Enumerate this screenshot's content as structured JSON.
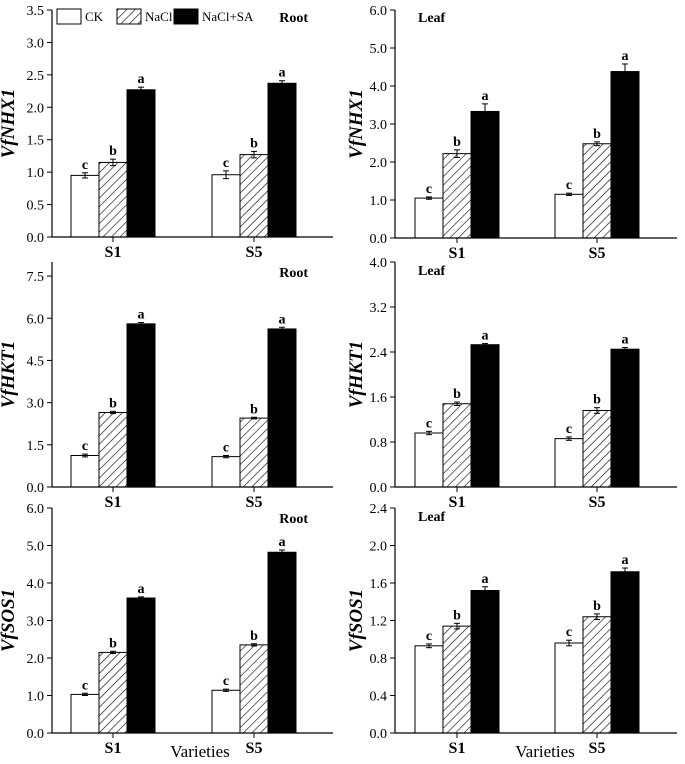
{
  "legend": [
    {
      "name": "CK",
      "fill": "white"
    },
    {
      "name": "NaCl",
      "fill": "hatch"
    },
    {
      "name": "NaCl+SA",
      "fill": "black"
    }
  ],
  "xlabel": "Varieties",
  "chart_data": [
    {
      "type": "bar",
      "panel": "top-left",
      "tissue": "Root",
      "ylabel": "VfNHX1",
      "ylim": [
        0,
        3.5
      ],
      "yticks": [
        "0.0",
        "0.5",
        "1.0",
        "1.5",
        "2.0",
        "2.5",
        "3.0",
        "3.5"
      ],
      "categories": [
        "S1",
        "S5"
      ],
      "series": [
        {
          "name": "CK",
          "values": [
            0.95,
            0.96
          ],
          "errors": [
            0.04,
            0.06
          ],
          "labels": [
            "c",
            "c"
          ]
        },
        {
          "name": "NaCl",
          "values": [
            1.15,
            1.27
          ],
          "errors": [
            0.05,
            0.05
          ],
          "labels": [
            "b",
            "b"
          ]
        },
        {
          "name": "NaCl+SA",
          "values": [
            2.27,
            2.37
          ],
          "errors": [
            0.04,
            0.04
          ],
          "labels": [
            "a",
            "a"
          ]
        }
      ]
    },
    {
      "type": "bar",
      "panel": "top-right",
      "tissue": "Leaf",
      "ylabel": "VfNHX1",
      "ylim": [
        0,
        6.0
      ],
      "yticks": [
        "0.0",
        "1.0",
        "2.0",
        "3.0",
        "4.0",
        "5.0",
        "6.0"
      ],
      "categories": [
        "S1",
        "S5"
      ],
      "series": [
        {
          "name": "CK",
          "values": [
            1.05,
            1.15
          ],
          "errors": [
            0.03,
            0.03
          ],
          "labels": [
            "c",
            "c"
          ]
        },
        {
          "name": "NaCl",
          "values": [
            2.22,
            2.48
          ],
          "errors": [
            0.1,
            0.05
          ],
          "labels": [
            "b",
            "b"
          ]
        },
        {
          "name": "NaCl+SA",
          "values": [
            3.33,
            4.38
          ],
          "errors": [
            0.2,
            0.2
          ],
          "labels": [
            "a",
            "a"
          ]
        }
      ]
    },
    {
      "type": "bar",
      "panel": "middle-left",
      "tissue": "Root",
      "ylabel": "VfHKT1",
      "ylim": [
        0,
        8.0
      ],
      "yticks": [
        "0.0",
        "1.5",
        "3.0",
        "4.5",
        "6.0",
        "7.5"
      ],
      "categories": [
        "S1",
        "S5"
      ],
      "series": [
        {
          "name": "CK",
          "values": [
            1.12,
            1.08
          ],
          "errors": [
            0.05,
            0.04
          ],
          "labels": [
            "c",
            "c"
          ]
        },
        {
          "name": "NaCl",
          "values": [
            2.65,
            2.45
          ],
          "errors": [
            0.04,
            0.03
          ],
          "labels": [
            "b",
            "b"
          ]
        },
        {
          "name": "NaCl+SA",
          "values": [
            5.8,
            5.62
          ],
          "errors": [
            0.05,
            0.06
          ],
          "labels": [
            "a",
            "a"
          ]
        }
      ]
    },
    {
      "type": "bar",
      "panel": "middle-right",
      "tissue": "Leaf",
      "ylabel": "VfHKT1",
      "ylim": [
        0,
        4.0
      ],
      "yticks": [
        "0.0",
        "0.8",
        "1.6",
        "2.4",
        "3.2",
        "4.0"
      ],
      "categories": [
        "S1",
        "S5"
      ],
      "series": [
        {
          "name": "CK",
          "values": [
            0.96,
            0.86
          ],
          "errors": [
            0.03,
            0.03
          ],
          "labels": [
            "c",
            "c"
          ]
        },
        {
          "name": "NaCl",
          "values": [
            1.48,
            1.36
          ],
          "errors": [
            0.03,
            0.05
          ],
          "labels": [
            "b",
            "b"
          ]
        },
        {
          "name": "NaCl+SA",
          "values": [
            2.53,
            2.45
          ],
          "errors": [
            0.02,
            0.03
          ],
          "labels": [
            "a",
            "a"
          ]
        }
      ]
    },
    {
      "type": "bar",
      "panel": "bottom-left",
      "tissue": "Root",
      "ylabel": "VfSOS1",
      "ylim": [
        0,
        6.0
      ],
      "yticks": [
        "0.0",
        "1.0",
        "2.0",
        "3.0",
        "4.0",
        "5.0",
        "6.0"
      ],
      "categories": [
        "S1",
        "S5"
      ],
      "series": [
        {
          "name": "CK",
          "values": [
            1.03,
            1.14
          ],
          "errors": [
            0.03,
            0.03
          ],
          "labels": [
            "c",
            "c"
          ]
        },
        {
          "name": "NaCl",
          "values": [
            2.15,
            2.35
          ],
          "errors": [
            0.03,
            0.03
          ],
          "labels": [
            "b",
            "b"
          ]
        },
        {
          "name": "NaCl+SA",
          "values": [
            3.6,
            4.82
          ],
          "errors": [
            0.03,
            0.06
          ],
          "labels": [
            "a",
            "a"
          ]
        }
      ]
    },
    {
      "type": "bar",
      "panel": "bottom-right",
      "tissue": "Leaf",
      "ylabel": "VfSOS1",
      "ylim": [
        0,
        2.4
      ],
      "yticks": [
        "0.0",
        "0.4",
        "0.8",
        "1.2",
        "1.6",
        "2.0",
        "2.4"
      ],
      "categories": [
        "S1",
        "S5"
      ],
      "series": [
        {
          "name": "CK",
          "values": [
            0.93,
            0.96
          ],
          "errors": [
            0.02,
            0.03
          ],
          "labels": [
            "c",
            "c"
          ]
        },
        {
          "name": "NaCl",
          "values": [
            1.14,
            1.24
          ],
          "errors": [
            0.03,
            0.03
          ],
          "labels": [
            "b",
            "b"
          ]
        },
        {
          "name": "NaCl+SA",
          "values": [
            1.52,
            1.72
          ],
          "errors": [
            0.04,
            0.04
          ],
          "labels": [
            "a",
            "a"
          ]
        }
      ]
    }
  ]
}
